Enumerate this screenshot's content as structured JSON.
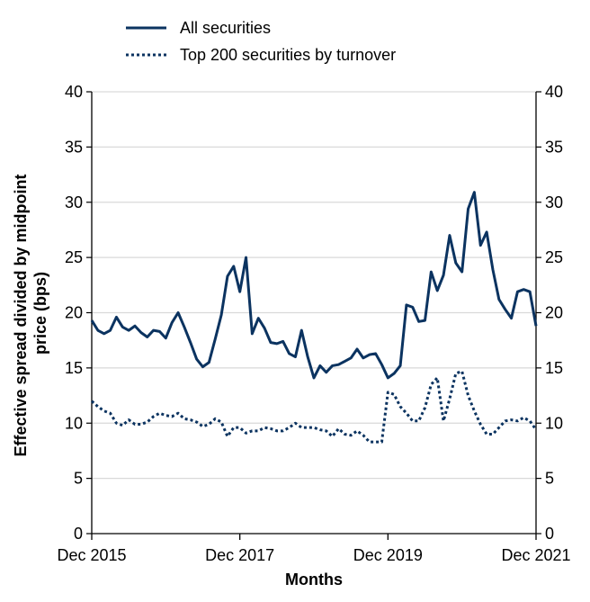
{
  "chart_data": {
    "type": "line",
    "title": "",
    "xlabel": "Months",
    "ylabel": "Effective spread divided by midpoint price (bps)",
    "ylabel_lines": [
      "Effective spread divided by midpoint",
      "price (bps)"
    ],
    "ylim": [
      0,
      40
    ],
    "yticks": [
      0,
      5,
      10,
      15,
      20,
      25,
      30,
      35,
      40
    ],
    "secondary_y_axis": true,
    "grid": "horizontal",
    "legend_position": "top-left, above plot",
    "x_tick_labels": [
      "Dec 2015",
      "Dec 2017",
      "Dec 2019",
      "Dec 2021"
    ],
    "x_start": "Dec 2015",
    "x_end": "Dec 2021",
    "line_color": "#0b3360",
    "series": [
      {
        "name": "All securities",
        "style": "solid",
        "values": [
          19.3,
          18.4,
          18.1,
          18.4,
          19.6,
          18.7,
          18.4,
          18.8,
          18.2,
          17.8,
          18.4,
          18.3,
          17.7,
          19.1,
          20.0,
          18.7,
          17.3,
          15.8,
          15.1,
          15.5,
          17.6,
          19.8,
          23.3,
          24.2,
          21.9,
          25.0,
          18.1,
          19.5,
          18.6,
          17.3,
          17.2,
          17.4,
          16.3,
          16.0,
          18.4,
          16.0,
          14.1,
          15.2,
          14.6,
          15.2,
          15.3,
          15.6,
          15.9,
          16.7,
          15.9,
          16.2,
          16.3,
          15.3,
          14.1,
          14.5,
          15.2,
          20.7,
          20.5,
          19.2,
          19.3,
          23.7,
          22.0,
          23.4,
          27.0,
          24.5,
          23.7,
          29.4,
          30.9,
          26.1,
          27.3,
          23.9,
          21.2,
          20.3,
          19.5,
          21.9,
          22.1,
          21.9,
          18.8
        ]
      },
      {
        "name": "Top 200 securities by turnover",
        "style": "dotted",
        "values": [
          12.0,
          11.5,
          11.1,
          10.9,
          10.0,
          9.8,
          10.3,
          9.9,
          9.9,
          10.1,
          10.6,
          10.9,
          10.7,
          10.6,
          10.9,
          10.4,
          10.3,
          10.1,
          9.7,
          9.9,
          10.4,
          10.1,
          8.8,
          9.6,
          9.6,
          9.1,
          9.3,
          9.3,
          9.6,
          9.5,
          9.3,
          9.3,
          9.6,
          10.0,
          9.6,
          9.6,
          9.6,
          9.4,
          9.3,
          8.8,
          9.5,
          9.0,
          8.9,
          9.3,
          8.9,
          8.3,
          8.3,
          8.3,
          12.8,
          12.6,
          11.5,
          10.9,
          10.2,
          10.2,
          11.4,
          13.5,
          14.1,
          10.2,
          12.2,
          14.5,
          14.7,
          12.5,
          11.1,
          9.9,
          9.0,
          9.0,
          9.6,
          10.2,
          10.3,
          10.2,
          10.5,
          10.2,
          9.4
        ]
      }
    ]
  }
}
